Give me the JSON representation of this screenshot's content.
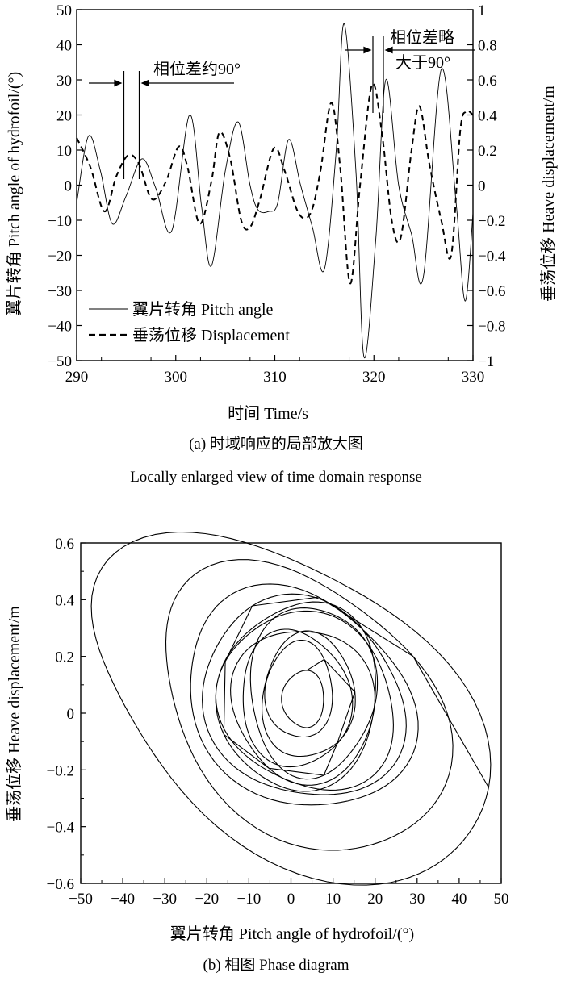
{
  "figure_a": {
    "caption_line1": "(a) 时域响应的局部放大图",
    "caption_line2": "Locally enlarged view of time domain response",
    "xlabel": "时间 Time/s",
    "ylabel_left": "翼片转角 Pitch angle of hydrofoil/(°)",
    "ylabel_right": "垂荡位移 Heave displacement/m",
    "annotation_1": "相位差约90°",
    "annotation_2_line1": "相位差略",
    "annotation_2_line2": "大于90°",
    "legend": {
      "pitch": "翼片转角 Pitch angle",
      "heave": "垂荡位移 Displacement"
    }
  },
  "figure_b": {
    "caption": "(b) 相图 Phase diagram",
    "xlabel": "翼片转角 Pitch angle of hydrofoil/(°)",
    "ylabel": "垂荡位移 Heave displacement/m"
  },
  "chart_data": [
    {
      "type": "line",
      "xlabel": "时间 Time/s",
      "ylabel": "翼片转角 Pitch angle of hydrofoil/(°)",
      "y2label": "垂荡位移 Heave displacement/m",
      "xlim": [
        290,
        330
      ],
      "ylim": [
        -50,
        50
      ],
      "y2lim": [
        -1,
        1
      ],
      "xticks": [
        "290",
        "300",
        "310",
        "320",
        "330"
      ],
      "yticks": [
        "50",
        "40",
        "30",
        "20",
        "10",
        "0",
        "−10",
        "−20",
        "−30",
        "−40",
        "−50"
      ],
      "y2ticks": [
        "1",
        "0.8",
        "0.6",
        "0.4",
        "0.2",
        "0",
        "−0.2",
        "−0.4",
        "−0.6",
        "−0.8",
        "−1"
      ],
      "legend_position": "bottom-left",
      "series": [
        {
          "name": "翼片转角 Pitch angle",
          "axis": "left",
          "style": "solid",
          "points": [
            [
              290,
              -5
            ],
            [
              291.2,
              14
            ],
            [
              292.4,
              4
            ],
            [
              293.6,
              -11
            ],
            [
              295,
              -3
            ],
            [
              296.6,
              7.5
            ],
            [
              298,
              -1
            ],
            [
              299.6,
              -13
            ],
            [
              301.4,
              20
            ],
            [
              302.6,
              -6
            ],
            [
              303.6,
              -23
            ],
            [
              305,
              4
            ],
            [
              306.3,
              18
            ],
            [
              307.5,
              0
            ],
            [
              308.3,
              -7
            ],
            [
              309.4,
              -7.5
            ],
            [
              310.3,
              -5
            ],
            [
              311.4,
              13
            ],
            [
              312.6,
              0
            ],
            [
              313.8,
              -12
            ],
            [
              315,
              -24
            ],
            [
              316.2,
              10
            ],
            [
              317,
              46
            ],
            [
              318.2,
              3
            ],
            [
              319,
              -49
            ],
            [
              320.2,
              -15
            ],
            [
              321.2,
              30
            ],
            [
              322.5,
              0
            ],
            [
              323.8,
              -14
            ],
            [
              325,
              -26
            ],
            [
              326.8,
              33
            ],
            [
              328.3,
              -5
            ],
            [
              329.2,
              -33
            ],
            [
              330,
              -8
            ]
          ]
        },
        {
          "name": "垂荡位移 Displacement",
          "axis": "right",
          "style": "dashed",
          "points": [
            [
              290,
              0.27
            ],
            [
              291.4,
              0.1
            ],
            [
              292.8,
              -0.15
            ],
            [
              294,
              0.05
            ],
            [
              295.2,
              0.17
            ],
            [
              296.3,
              0.12
            ],
            [
              297.6,
              -0.08
            ],
            [
              299,
              0.02
            ],
            [
              300.3,
              0.22
            ],
            [
              301.2,
              0.1
            ],
            [
              302.4,
              -0.22
            ],
            [
              303.6,
              0.02
            ],
            [
              304.4,
              0.3
            ],
            [
              305.5,
              0.15
            ],
            [
              306.6,
              -0.2
            ],
            [
              307.5,
              -0.24
            ],
            [
              308.5,
              -0.08
            ],
            [
              309.9,
              0.21
            ],
            [
              311,
              0.08
            ],
            [
              312.4,
              -0.16
            ],
            [
              313.6,
              -0.16
            ],
            [
              314.6,
              0.08
            ],
            [
              315.7,
              0.47
            ],
            [
              316.6,
              0.1
            ],
            [
              317.6,
              -0.56
            ],
            [
              318.6,
              0.0
            ],
            [
              319.8,
              0.57
            ],
            [
              320.8,
              0.3
            ],
            [
              321.8,
              -0.2
            ],
            [
              322.7,
              -0.3
            ],
            [
              323.8,
              0.2
            ],
            [
              324.6,
              0.45
            ],
            [
              325.6,
              0.12
            ],
            [
              326.8,
              -0.2
            ],
            [
              327.8,
              -0.4
            ],
            [
              328.7,
              0.3
            ],
            [
              329.3,
              0.42
            ],
            [
              330,
              0.4
            ]
          ]
        }
      ]
    },
    {
      "type": "line",
      "xlabel": "翼片转角 Pitch angle of hydrofoil/(°)",
      "ylabel": "垂荡位移 Heave displacement/m",
      "xlim": [
        -50,
        50
      ],
      "ylim": [
        -0.6,
        0.6
      ],
      "xticks": [
        "−50",
        "−40",
        "−30",
        "−20",
        "−10",
        "0",
        "10",
        "20",
        "30",
        "40",
        "50"
      ],
      "yticks": [
        "0.6",
        "0.4",
        "0.2",
        "0",
        "−0.2",
        "−0.4",
        "−0.6"
      ],
      "loops": [
        {
          "cx": 0,
          "cy": 0.02,
          "rx": 47,
          "ry": 0.55,
          "tilt": -0.006
        },
        {
          "cx": 3,
          "cy": 0.02,
          "rx": 34,
          "ry": 0.48,
          "tilt": -0.005
        },
        {
          "cx": 2,
          "cy": 0.05,
          "rx": 27,
          "ry": 0.38,
          "tilt": -0.003
        },
        {
          "cx": 3,
          "cy": 0.05,
          "rx": 24,
          "ry": 0.35,
          "tilt": -0.002
        },
        {
          "cx": 4,
          "cy": 0.04,
          "rx": 21,
          "ry": 0.31,
          "tilt": -0.002
        },
        {
          "cx": 2,
          "cy": 0.06,
          "rx": 19,
          "ry": 0.33,
          "tilt": 0.001
        },
        {
          "cx": 3,
          "cy": 0.03,
          "rx": 17,
          "ry": 0.27,
          "tilt": -0.001
        },
        {
          "cx": 5,
          "cy": 0.08,
          "rx": 15,
          "ry": 0.3,
          "tilt": 0.0
        },
        {
          "cx": 1,
          "cy": 0.05,
          "rx": 13,
          "ry": 0.24,
          "tilt": -0.001
        },
        {
          "cx": 4,
          "cy": 0.06,
          "rx": 11,
          "ry": 0.22,
          "tilt": 0.001
        },
        {
          "cx": 2,
          "cy": 0.08,
          "rx": 8,
          "ry": 0.17,
          "tilt": 0.0
        },
        {
          "cx": 3,
          "cy": 0.05,
          "rx": 5,
          "ry": 0.1,
          "tilt": 0.0
        }
      ]
    }
  ]
}
